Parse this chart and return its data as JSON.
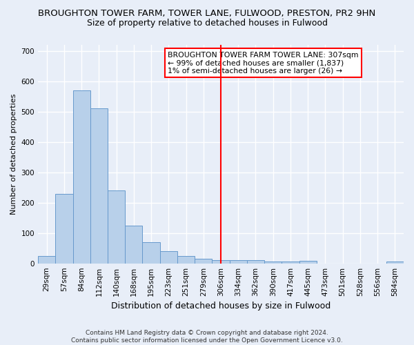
{
  "title": "BROUGHTON TOWER FARM, TOWER LANE, FULWOOD, PRESTON, PR2 9HN",
  "subtitle": "Size of property relative to detached houses in Fulwood",
  "xlabel": "Distribution of detached houses by size in Fulwood",
  "ylabel": "Number of detached properties",
  "footnote": "Contains HM Land Registry data © Crown copyright and database right 2024.\nContains public sector information licensed under the Open Government Licence v3.0.",
  "bar_labels": [
    "29sqm",
    "57sqm",
    "84sqm",
    "112sqm",
    "140sqm",
    "168sqm",
    "195sqm",
    "223sqm",
    "251sqm",
    "279sqm",
    "306sqm",
    "334sqm",
    "362sqm",
    "390sqm",
    "417sqm",
    "445sqm",
    "473sqm",
    "501sqm",
    "528sqm",
    "556sqm",
    "584sqm"
  ],
  "bar_values": [
    25,
    230,
    570,
    510,
    240,
    125,
    70,
    40,
    25,
    15,
    10,
    10,
    10,
    5,
    5,
    8,
    0,
    0,
    0,
    0,
    5
  ],
  "bar_color": "#b8d0ea",
  "bar_edge_color": "#6699cc",
  "red_line_index": 10,
  "annotation_line1": "BROUGHTON TOWER FARM TOWER LANE: 307sqm",
  "annotation_line2": "← 99% of detached houses are smaller (1,837)",
  "annotation_line3": "1% of semi-detached houses are larger (26) →",
  "ylim": [
    0,
    720
  ],
  "yticks": [
    0,
    100,
    200,
    300,
    400,
    500,
    600,
    700
  ],
  "background_color": "#e8eef8",
  "grid_color": "#ffffff",
  "fig_background": "#e8eef8",
  "title_fontsize": 9.5,
  "subtitle_fontsize": 9,
  "ylabel_fontsize": 8,
  "xlabel_fontsize": 9,
  "tick_fontsize": 7.5,
  "footnote_fontsize": 6.5
}
